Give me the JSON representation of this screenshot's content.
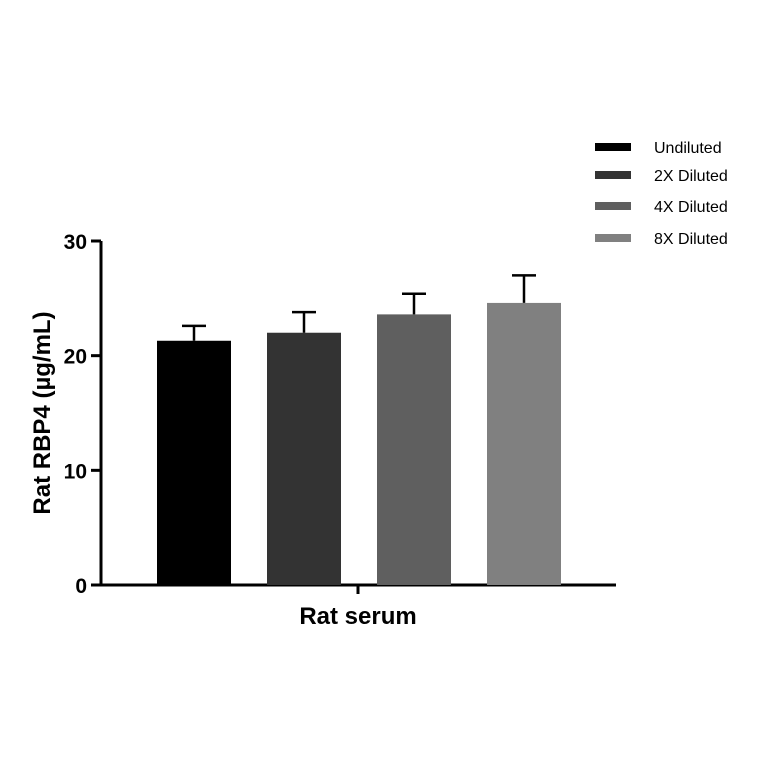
{
  "chart_data": {
    "type": "bar",
    "title": "",
    "xlabel": "Rat serum",
    "ylabel": "Rat RBP4 (µg/mL)",
    "categories": [
      "Rat serum"
    ],
    "ylim": [
      0,
      30
    ],
    "yticks": [
      0,
      10,
      20,
      30
    ],
    "ytick_labels": [
      "0",
      "10",
      "20",
      "30"
    ],
    "grid": false,
    "legend_position": "top-right",
    "series": [
      {
        "name": "Undiluted",
        "values": [
          21.3
        ],
        "error": [
          1.3
        ],
        "color": "#000000"
      },
      {
        "name": "2X Diluted",
        "values": [
          22.0
        ],
        "error": [
          1.8
        ],
        "color": "#333333"
      },
      {
        "name": "4X Diluted",
        "values": [
          23.6
        ],
        "error": [
          1.8
        ],
        "color": "#5f5f5f"
      },
      {
        "name": "8X Diluted",
        "values": [
          24.6
        ],
        "error": [
          2.4
        ],
        "color": "#808080"
      }
    ]
  }
}
